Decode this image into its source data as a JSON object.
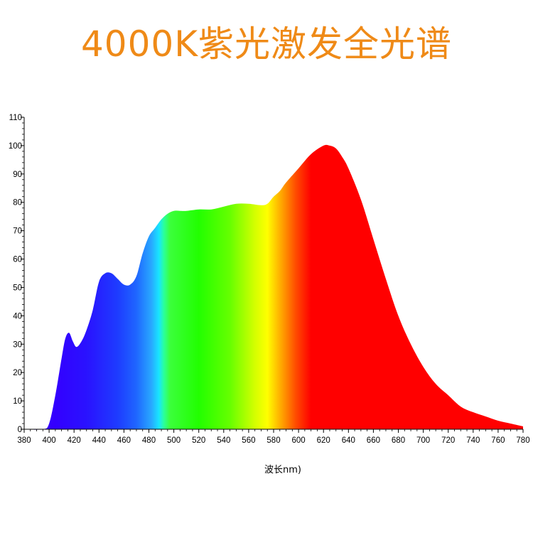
{
  "chart_data": {
    "type": "area",
    "title": "4000K紫光激发全光谱",
    "xlabel": "波长nm)",
    "ylabel": "",
    "xlim": [
      380,
      780
    ],
    "ylim": [
      0,
      110
    ],
    "xticks": [
      380,
      400,
      420,
      440,
      460,
      480,
      500,
      520,
      540,
      560,
      580,
      600,
      620,
      640,
      660,
      680,
      700,
      720,
      740,
      760,
      780
    ],
    "yticks": [
      0,
      10,
      20,
      30,
      40,
      50,
      60,
      70,
      80,
      90,
      100,
      110
    ],
    "grid": false,
    "legend": "none",
    "x": [
      380,
      395,
      400,
      405,
      410,
      413,
      416,
      419,
      422,
      426,
      430,
      435,
      440,
      445,
      450,
      455,
      460,
      465,
      470,
      475,
      480,
      485,
      490,
      495,
      500,
      505,
      510,
      520,
      530,
      540,
      550,
      560,
      570,
      575,
      580,
      585,
      590,
      600,
      610,
      620,
      625,
      630,
      635,
      640,
      650,
      660,
      670,
      680,
      690,
      700,
      710,
      720,
      730,
      740,
      750,
      760,
      770,
      780
    ],
    "y": [
      0,
      0,
      2,
      12,
      25,
      32,
      34,
      31,
      29,
      31,
      35,
      42,
      52,
      55,
      55,
      53,
      51,
      51,
      54,
      62,
      68,
      71,
      74,
      76,
      77,
      77,
      77,
      77.5,
      77.5,
      78.5,
      79.5,
      79.5,
      79,
      79.5,
      82,
      84,
      87,
      92,
      97,
      100,
      100,
      99,
      96,
      92,
      81,
      67,
      53,
      40,
      30,
      22,
      16,
      12,
      8,
      6,
      4.5,
      3,
      2,
      1
    ],
    "gradient_stops": [
      {
        "nm": 380,
        "color": "#3b00ff"
      },
      {
        "nm": 405,
        "color": "#3300ff"
      },
      {
        "nm": 430,
        "color": "#2a12ff"
      },
      {
        "nm": 455,
        "color": "#1e3cff"
      },
      {
        "nm": 470,
        "color": "#1f66ff"
      },
      {
        "nm": 482,
        "color": "#28a8ff"
      },
      {
        "nm": 488,
        "color": "#18e4ff"
      },
      {
        "nm": 492,
        "color": "#2aff9c"
      },
      {
        "nm": 497,
        "color": "#3bff3b"
      },
      {
        "nm": 520,
        "color": "#22ff00"
      },
      {
        "nm": 545,
        "color": "#66ff00"
      },
      {
        "nm": 565,
        "color": "#d4ff00"
      },
      {
        "nm": 575,
        "color": "#ffff00"
      },
      {
        "nm": 585,
        "color": "#ffb000"
      },
      {
        "nm": 598,
        "color": "#ff4a00"
      },
      {
        "nm": 610,
        "color": "#ff0000"
      },
      {
        "nm": 780,
        "color": "#ff0000"
      }
    ]
  }
}
